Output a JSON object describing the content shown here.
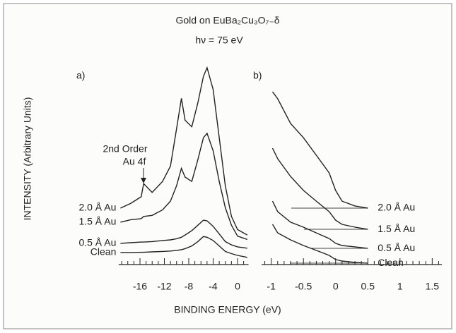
{
  "chart_data": [
    {
      "type": "line",
      "title": "Gold on EuBa₂Cu₃O₇₋δ",
      "subtitle": "hν = 75 eV",
      "ylabel": "INTENSITY (Arbitrary Units)",
      "xlabel": "BINDING ENERGY (eV)",
      "label": "a)",
      "annotation": [
        "2nd Order",
        "Au 4f"
      ],
      "xlim": [
        -19.5,
        1.8
      ],
      "ylim": [
        0,
        100
      ],
      "xticks": [
        -16,
        -12,
        -8,
        -4,
        0
      ],
      "xminorticks": [
        -19,
        -18,
        -17,
        -15,
        -14,
        -13,
        -11,
        -10,
        -9,
        -7,
        -6,
        -5,
        -3,
        -2,
        -1,
        1
      ],
      "x": [
        -19.2,
        -17.5,
        -15.8,
        -15.4,
        -14,
        -12.3,
        -11,
        -10,
        -9.2,
        -8.6,
        -7.5,
        -6.5,
        -5.6,
        -5,
        -4,
        -3,
        -2,
        -1,
        0,
        1.6
      ],
      "series": [
        {
          "name": "2.0 Å Au",
          "color": "#222222",
          "values": [
            25.8,
            28,
            31,
            37,
            33,
            38,
            45,
            62,
            76,
            66,
            63,
            74,
            86,
            90,
            80,
            58,
            36,
            22,
            16,
            13.5
          ]
        },
        {
          "name": "1.5 Å Au",
          "color": "#222222",
          "values": [
            19.4,
            20.5,
            21,
            22,
            22.5,
            25,
            29,
            36,
            44,
            40,
            38,
            48,
            58,
            60,
            52,
            38,
            26,
            18,
            13,
            11.5
          ]
        },
        {
          "name": "0.5 Å Au",
          "color": "#222222",
          "values": [
            9.7,
            10,
            10.3,
            10.3,
            10.5,
            11,
            11.3,
            11.8,
            12.5,
            13.5,
            15.5,
            18,
            20.3,
            20,
            17.5,
            14,
            10.5,
            9,
            8.1,
            7.5
          ]
        },
        {
          "name": "Clean",
          "color": "#222222",
          "values": [
            5.5,
            5.5,
            5.6,
            5.6,
            5.8,
            6,
            6.2,
            6.5,
            6.8,
            7.3,
            8.5,
            10.5,
            12.8,
            12.5,
            11,
            8.5,
            6,
            5,
            4.2,
            3.3
          ]
        }
      ]
    },
    {
      "type": "line",
      "label": "b)",
      "xlim": [
        -1.15,
        1.65
      ],
      "ylim": [
        0,
        100
      ],
      "xticks": [
        -1,
        -0.5,
        0,
        0.5,
        1,
        1.5
      ],
      "xminorticks": [
        -1.1,
        -0.9,
        -0.8,
        -0.7,
        -0.6,
        -0.4,
        -0.3,
        -0.2,
        -0.1,
        0.1,
        0.2,
        0.3,
        0.4,
        0.6,
        0.7,
        0.8,
        0.9,
        1.1,
        1.2,
        1.3,
        1.4,
        1.6
      ],
      "x": [
        -0.98,
        -0.9,
        -0.7,
        -0.5,
        -0.3,
        -0.1,
        0,
        0.1,
        0.3,
        0.5
      ],
      "series": [
        {
          "name": "2.0 Å Au",
          "color": "#222222",
          "values": [
            79,
            75.8,
            64.5,
            58,
            50,
            41.9,
            33.9,
            29,
            26.8,
            25.8
          ]
        },
        {
          "name": "1.5 Å Au",
          "color": "#222222",
          "values": [
            53.2,
            48.4,
            40.3,
            33.9,
            29,
            24.2,
            20.3,
            18.4,
            17.1,
            16.1
          ]
        },
        {
          "name": "0.5 Å Au",
          "color": "#222222",
          "values": [
            29,
            24.2,
            19.4,
            17.1,
            14.5,
            11.9,
            9.7,
            8.7,
            8.1,
            7.4
          ]
        },
        {
          "name": "Clean",
          "color": "#222222",
          "values": [
            18.4,
            14.5,
            11.3,
            8.7,
            6.5,
            4.2,
            2.3,
            1.6,
            1,
            0.6
          ]
        }
      ]
    }
  ]
}
